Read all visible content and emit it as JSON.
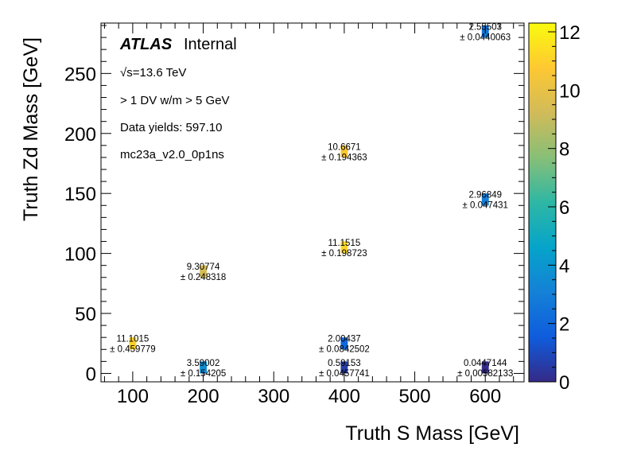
{
  "chart_data": {
    "type": "heatmap",
    "xlabel": "Truth S Mass [GeV]",
    "ylabel": "Truth Zd Mass [GeV]",
    "xlim": [
      55,
      655
    ],
    "ylim": [
      -7,
      292
    ],
    "xticks": [
      100,
      200,
      300,
      400,
      500,
      600
    ],
    "yticks": [
      0,
      50,
      100,
      150,
      200,
      250
    ],
    "zlim": [
      0,
      12.3
    ],
    "zticks": [
      0,
      2,
      4,
      6,
      8,
      10,
      12
    ],
    "colormap": "parula",
    "grid": false,
    "annotations": {
      "atlas": "ATLAS",
      "internal": "Internal",
      "sqrt_s": "√s=13.6 TeV",
      "selection": "> 1 DV w/m > 5 GeV",
      "yields": "Data yields: 597.10",
      "sample": "mc23a_v2.0_0p1ns"
    },
    "cells": [
      {
        "x": 100,
        "y": 25,
        "value": 11.1015,
        "value_label": "11.1015",
        "error_label": "± 0.459779"
      },
      {
        "x": 200,
        "y": 5,
        "value": 3.59002,
        "value_label": "3.59002",
        "error_label": "± 0.154205"
      },
      {
        "x": 200,
        "y": 85,
        "value": 9.30774,
        "value_label": "9.30774",
        "error_label": "± 0.248318"
      },
      {
        "x": 400,
        "y": 5,
        "value": 0.59153,
        "value_label": "0.59153",
        "error_label": "± 0.0457741"
      },
      {
        "x": 400,
        "y": 25,
        "value": 2.00437,
        "value_label": "2.00437",
        "error_label": "± 0.0842502"
      },
      {
        "x": 400,
        "y": 105,
        "value": 11.1515,
        "value_label": "11.1515",
        "error_label": "± 0.198723"
      },
      {
        "x": 400,
        "y": 185,
        "value": 10.6671,
        "value_label": "10.6671",
        "error_label": "± 0.194363"
      },
      {
        "x": 600,
        "y": 5,
        "value": 0.0447144,
        "value_label": "0.0447144",
        "error_label": "± 0.00582133"
      },
      {
        "x": 600,
        "y": 145,
        "value": 2.96849,
        "value_label": "2.96849",
        "error_label": "± 0.047431"
      },
      {
        "x": 600,
        "y": 285,
        "value": 2.55503,
        "value_label": "2.55503",
        "error_label": "± 0.0440063"
      }
    ]
  }
}
